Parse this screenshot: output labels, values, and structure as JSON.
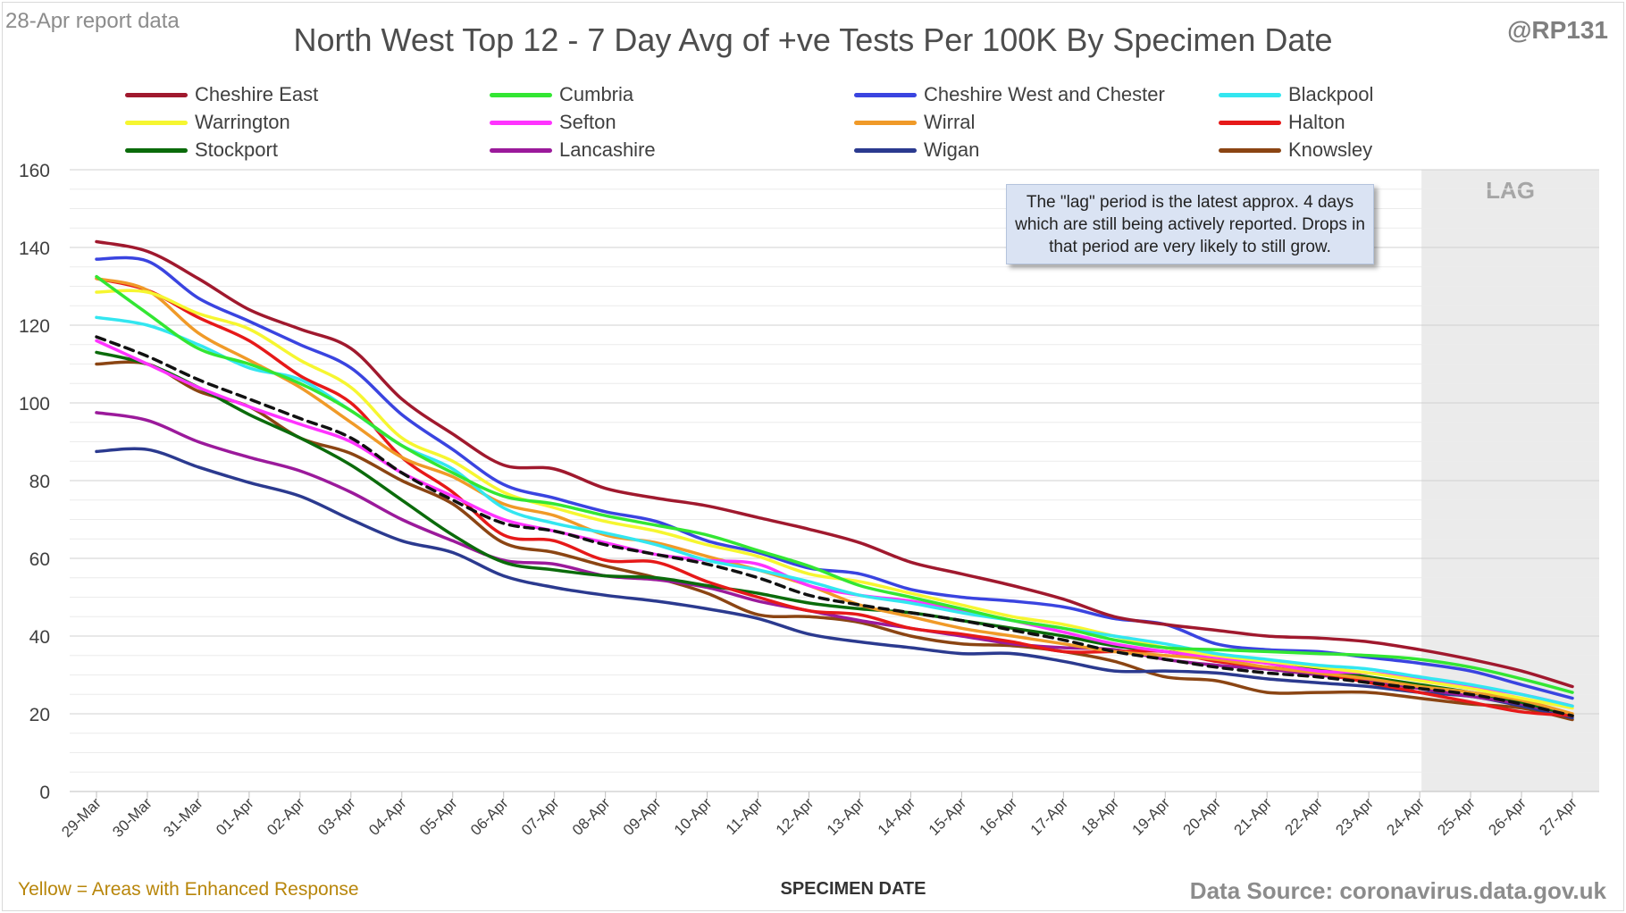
{
  "header": {
    "report_note": "28-Apr report data",
    "handle": "@RP131"
  },
  "footer": {
    "note": "Yellow = Areas with Enhanced Response",
    "source": "Data Source: coronavirus.data.gov.uk"
  },
  "annotation": {
    "text": "The \"lag\" period is the latest approx. 4 days which are still being actively reported. Drops in that period are very likely to still grow."
  },
  "chart_data": {
    "type": "line",
    "title": "North West Top 12 - 7 Day Avg of +ve Tests Per 100K By Specimen Date",
    "xlabel": "SPECIMEN DATE",
    "ylabel": "",
    "ylim": [
      0,
      160
    ],
    "yticks": [
      0,
      20,
      40,
      60,
      80,
      100,
      120,
      140,
      160
    ],
    "grid": true,
    "legend_position": "top",
    "lag_label": "LAG",
    "lag_start": "24-Apr",
    "lag_color": "#ebebeb",
    "categories": [
      "29-Mar",
      "30-Mar",
      "31-Mar",
      "01-Apr",
      "02-Apr",
      "03-Apr",
      "04-Apr",
      "05-Apr",
      "06-Apr",
      "07-Apr",
      "08-Apr",
      "09-Apr",
      "10-Apr",
      "11-Apr",
      "12-Apr",
      "13-Apr",
      "14-Apr",
      "15-Apr",
      "16-Apr",
      "17-Apr",
      "18-Apr",
      "19-Apr",
      "20-Apr",
      "21-Apr",
      "22-Apr",
      "23-Apr",
      "24-Apr",
      "25-Apr",
      "26-Apr",
      "27-Apr"
    ],
    "series": [
      {
        "name": "Cheshire East",
        "color": "#a0192e",
        "values": [
          141.5,
          139,
          132,
          124,
          119,
          114,
          101,
          92,
          84,
          83,
          78,
          75.5,
          73.5,
          70.5,
          67.5,
          64,
          59,
          56,
          53,
          49.5,
          45,
          43,
          41.5,
          40,
          39.5,
          38.5,
          36.5,
          34,
          31,
          27
        ]
      },
      {
        "name": "Cumbria",
        "color": "#33e633",
        "values": [
          132.5,
          123,
          114,
          110,
          105,
          98,
          89,
          82,
          76,
          74,
          71,
          68.5,
          66,
          62,
          58,
          53,
          50,
          47,
          44,
          42,
          39,
          37,
          36.5,
          36,
          35.5,
          35,
          34,
          32,
          29,
          25.5
        ]
      },
      {
        "name": "Cheshire West and Chester",
        "color": "#3a44e0",
        "values": [
          137,
          136.5,
          127,
          121,
          115,
          109,
          97,
          88,
          79,
          75.5,
          72,
          69.5,
          64.5,
          61.5,
          57.5,
          56,
          52,
          50,
          49,
          47.5,
          44.5,
          43,
          38,
          36.5,
          36,
          34.5,
          33,
          31,
          27.5,
          24
        ]
      },
      {
        "name": "Blackpool",
        "color": "#33e6f0",
        "values": [
          122,
          120,
          115,
          109,
          106,
          98,
          89,
          83,
          73,
          69,
          66.5,
          63.5,
          59.5,
          57,
          54,
          50.5,
          48.5,
          46,
          44,
          42,
          40,
          38,
          35.5,
          34,
          32.5,
          31.5,
          29.5,
          27.5,
          25,
          22
        ]
      },
      {
        "name": "Warrington",
        "color": "#f6f630",
        "values": [
          128.5,
          128.5,
          123,
          119,
          111,
          104,
          91,
          85,
          77,
          73,
          69.5,
          67,
          63.5,
          60.5,
          56,
          54,
          51,
          48,
          45,
          43,
          40,
          37,
          35,
          33.5,
          32,
          30.5,
          28.5,
          26.5,
          24,
          21.5
        ]
      },
      {
        "name": "Sefton",
        "color": "#ff33ff",
        "values": [
          116,
          110,
          104,
          99,
          94.5,
          90,
          82,
          76,
          70,
          67,
          64,
          61,
          59.5,
          58.5,
          53,
          50.5,
          49,
          46.5,
          44,
          41,
          38,
          36,
          34.5,
          33,
          31,
          30.5,
          29,
          27,
          25,
          22
        ]
      },
      {
        "name": "Wirral",
        "color": "#f09a28",
        "values": [
          132,
          129,
          118,
          111,
          104,
          95,
          86,
          81,
          74,
          71,
          66,
          64,
          60.5,
          57,
          53,
          48,
          45,
          42,
          40,
          38,
          36,
          35,
          34,
          32,
          30.5,
          29,
          27,
          25.5,
          23.5,
          20
        ]
      },
      {
        "name": "Halton",
        "color": "#e61919",
        "values": [
          132,
          129,
          122,
          116,
          107,
          100,
          86,
          77,
          66,
          64.5,
          59.5,
          59,
          54,
          50,
          46.5,
          45.5,
          42,
          40.5,
          38.5,
          36,
          36,
          36,
          33.5,
          32,
          30.5,
          28,
          25.5,
          23,
          20.5,
          19.5
        ]
      },
      {
        "name": "Stockport",
        "color": "#0b6b0b",
        "values": [
          113,
          110,
          104,
          97,
          91,
          84,
          75,
          66,
          59,
          57,
          55.5,
          55,
          53,
          51,
          48.5,
          47,
          46,
          44,
          42,
          40,
          37.5,
          36,
          35,
          33.5,
          31.5,
          29.5,
          27.5,
          25.5,
          23,
          19.5
        ]
      },
      {
        "name": "Lancashire",
        "color": "#9b1a9b",
        "values": [
          97.5,
          95.5,
          90,
          86,
          82.5,
          77,
          70,
          64.5,
          59.5,
          58.5,
          55.5,
          54.5,
          52.5,
          49,
          46.5,
          44,
          42,
          40,
          38,
          37,
          36.5,
          34,
          32.5,
          31.5,
          30,
          28.5,
          26.5,
          24.5,
          22.5,
          19.5
        ]
      },
      {
        "name": "Wigan",
        "color": "#2b3a8f",
        "values": [
          87.5,
          88,
          83.5,
          79.5,
          76,
          70,
          64.5,
          61.5,
          55.5,
          52.5,
          50.5,
          49,
          47,
          44.5,
          40.5,
          38.5,
          37,
          35.5,
          35.5,
          33.5,
          31,
          31,
          30.5,
          29,
          28,
          27,
          25.5,
          24.5,
          22,
          19
        ]
      },
      {
        "name": "Knowsley",
        "color": "#8b4513",
        "values": [
          110,
          110,
          103,
          99,
          91,
          87,
          80,
          74,
          64,
          61.5,
          58,
          55,
          51,
          45.5,
          45,
          43.5,
          40,
          38,
          37.5,
          36,
          33.5,
          29.5,
          28.5,
          25.5,
          25.5,
          25.5,
          24,
          22.5,
          21.5,
          18.5
        ]
      },
      {
        "name": "",
        "color": "#111111",
        "dashed": true,
        "values": [
          117,
          112,
          106,
          101,
          96,
          91,
          82,
          75,
          69,
          67,
          63.5,
          61,
          58.5,
          55,
          50.5,
          48,
          46,
          44,
          41.5,
          39,
          36,
          34,
          32,
          30.5,
          29.5,
          28,
          26.5,
          25,
          22.5,
          19.5
        ]
      }
    ]
  }
}
